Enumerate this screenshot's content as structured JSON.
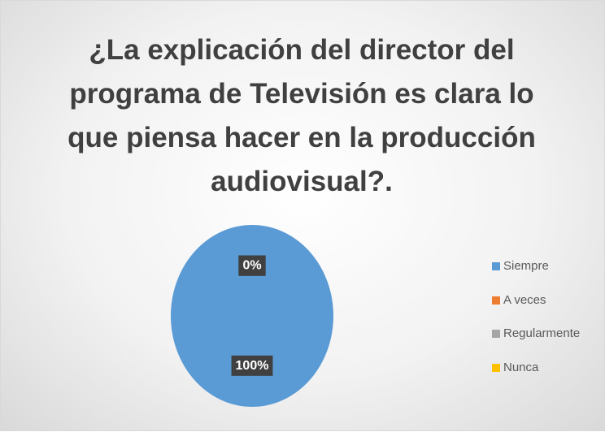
{
  "chart_data": {
    "type": "pie",
    "title": "¿La explicación del director del\nprograma de Televisión es clara lo\nque piensa hacer en la producción\naudiovisual?.",
    "categories": [
      "Siempre",
      "A veces",
      "Regularmente",
      "Nunca"
    ],
    "values": [
      100,
      0,
      0,
      0
    ],
    "value_labels": [
      "100%",
      "0%",
      "0%",
      "0%"
    ],
    "colors": [
      "#5b9bd5",
      "#ed7d31",
      "#a5a5a5",
      "#ffc000"
    ],
    "legend": "right"
  }
}
